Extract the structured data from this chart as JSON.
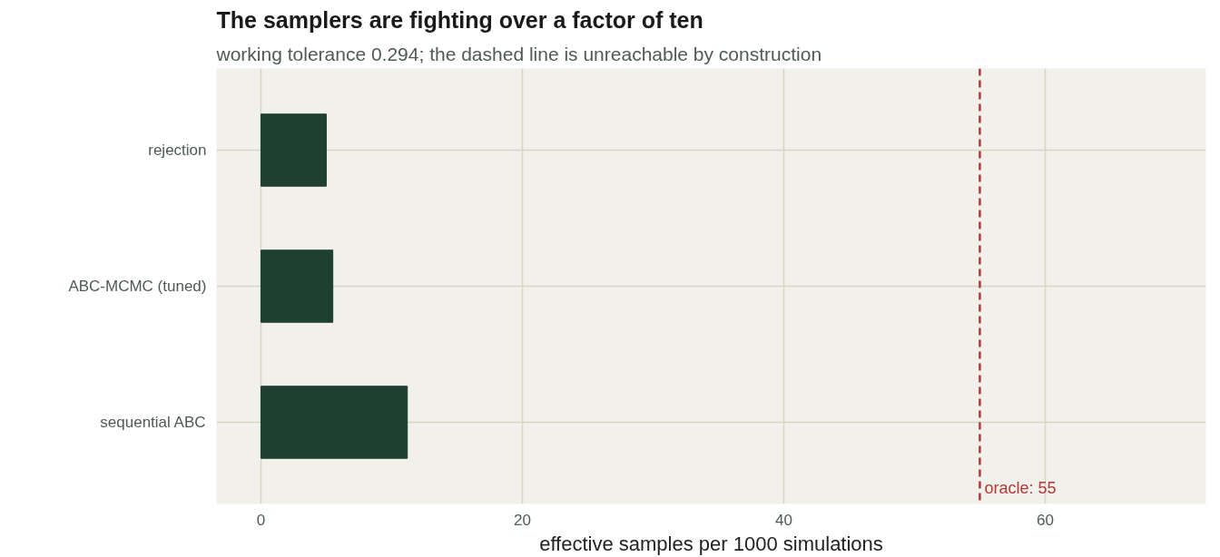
{
  "chart_data": {
    "type": "bar",
    "orientation": "horizontal",
    "title": "The samplers are fighting over a factor of ten",
    "subtitle": "working tolerance 0.294; the dashed line is unreachable by construction",
    "xlabel": "effective samples per 1000 simulations",
    "categories": [
      "rejection",
      "ABC-MCMC (tuned)",
      "sequential ABC"
    ],
    "values": [
      5.0,
      5.5,
      11.2
    ],
    "color": "#1f4030",
    "xlim": [
      -3.4,
      72.3
    ],
    "xticks": [
      0,
      20,
      40,
      60
    ],
    "grid": true,
    "ref_lines": [
      {
        "axis": "x",
        "value": 55,
        "label": "oracle: 55",
        "color": "#b03a3a",
        "line_style": "dashed"
      }
    ]
  }
}
